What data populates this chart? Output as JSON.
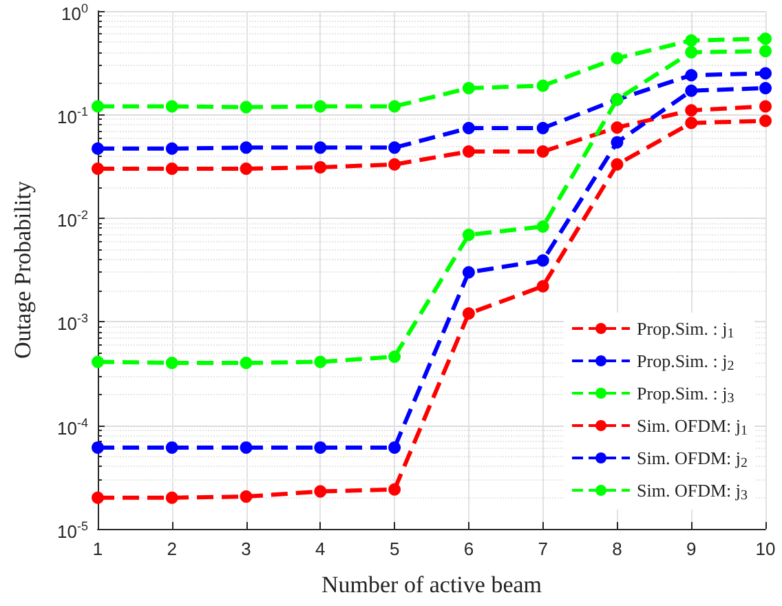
{
  "chart_data": {
    "type": "line",
    "xlabel": "Number of active beam",
    "ylabel": "Outage Probability",
    "x": [
      1,
      2,
      3,
      4,
      5,
      6,
      7,
      8,
      9,
      10
    ],
    "xlim": [
      1,
      10
    ],
    "xticks": [
      1,
      2,
      3,
      4,
      5,
      6,
      7,
      8,
      9,
      10
    ],
    "ylim": [
      1e-05,
      1
    ],
    "log": "y",
    "yticks": [
      {
        "value": 1e-05,
        "label": "10$^{-5}$"
      },
      {
        "value": 0.0001,
        "label": "10$^{-4}$"
      },
      {
        "value": 0.001,
        "label": "10$^{-3}$"
      },
      {
        "value": 0.01,
        "label": "10$^{-2}$"
      },
      {
        "value": 0.1,
        "label": "10$^{-1}$"
      },
      {
        "value": 1,
        "label": "10$^{0}$"
      }
    ],
    "grid": true,
    "legend": "bottom right",
    "line_style": "dashed",
    "marker": "circle",
    "series": [
      {
        "name": "Prop.Sim. : j$_{1}$",
        "color": "#ff0000",
        "values": [
          2e-05,
          2e-05,
          2.05e-05,
          2.3e-05,
          2.4e-05,
          0.0012,
          0.0022,
          0.033,
          0.083,
          0.087
        ]
      },
      {
        "name": "Prop.Sim. : j$_{2}$",
        "color": "#0000ff",
        "values": [
          6.1e-05,
          6.1e-05,
          6.1e-05,
          6.1e-05,
          6.1e-05,
          0.003,
          0.0039,
          0.054,
          0.17,
          0.18
        ]
      },
      {
        "name": "Prop.Sim. : j$_{3}$",
        "color": "#00ff00",
        "values": [
          0.00041,
          0.0004,
          0.0004,
          0.00041,
          0.00046,
          0.0069,
          0.0083,
          0.14,
          0.4,
          0.41
        ]
      },
      {
        "name": "Sim. OFDM: j$_{1}$",
        "color": "#ff0000",
        "values": [
          0.03,
          0.03,
          0.03,
          0.031,
          0.033,
          0.044,
          0.044,
          0.075,
          0.11,
          0.12
        ]
      },
      {
        "name": "Sim. OFDM: j$_{2}$",
        "color": "#0000ff",
        "values": [
          0.047,
          0.047,
          0.048,
          0.048,
          0.048,
          0.074,
          0.074,
          0.14,
          0.24,
          0.25
        ]
      },
      {
        "name": "Sim. OFDM: j$_{3}$",
        "color": "#00ff00",
        "values": [
          0.12,
          0.12,
          0.118,
          0.12,
          0.12,
          0.18,
          0.19,
          0.35,
          0.52,
          0.54
        ]
      }
    ]
  }
}
